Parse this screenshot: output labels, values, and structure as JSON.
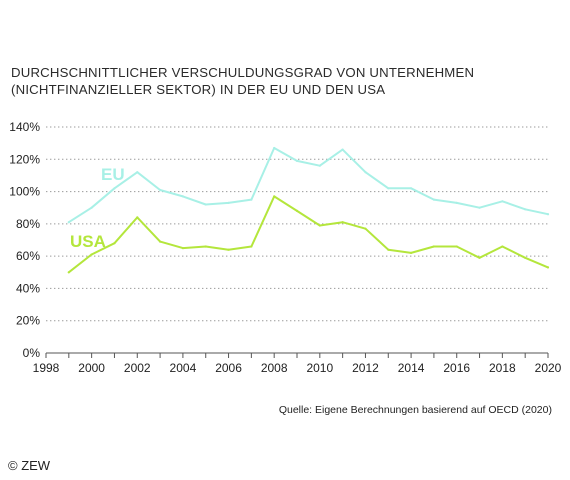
{
  "chart_data": {
    "type": "line",
    "title_lines": [
      "DURCHSCHNITTLICHER VERSCHULDUNGSGRAD VON UNTERNEHMEN",
      "(NICHTFINANZIELLER SEKTOR) IN DER EU UND DEN USA"
    ],
    "xlabel": "",
    "ylabel": "",
    "xlim": [
      1998,
      2020
    ],
    "ylim": [
      0,
      140
    ],
    "x_ticks": [
      "1998",
      "2000",
      "2002",
      "2004",
      "2006",
      "2008",
      "2010",
      "2012",
      "2014",
      "2016",
      "2018",
      "2020"
    ],
    "y_ticks": [
      "0%",
      "20%",
      "40%",
      "60%",
      "80%",
      "100%",
      "120%",
      "140%"
    ],
    "grid": "horizontal dotted",
    "x": [
      1999,
      2000,
      2001,
      2002,
      2003,
      2004,
      2005,
      2006,
      2007,
      2008,
      2009,
      2010,
      2011,
      2012,
      2013,
      2014,
      2015,
      2016,
      2017,
      2018,
      2019,
      2020
    ],
    "series": [
      {
        "name": "EU",
        "color": "#a8f0e6",
        "values": [
          81,
          90,
          102,
          112,
          101,
          97,
          92,
          93,
          95,
          127,
          119,
          116,
          126,
          112,
          102,
          102,
          95,
          93,
          90,
          94,
          89,
          86
        ]
      },
      {
        "name": "USA",
        "color": "#b4e63c",
        "values": [
          50,
          61,
          68,
          84,
          69,
          65,
          66,
          64,
          66,
          97,
          88,
          79,
          81,
          77,
          64,
          62,
          66,
          66,
          59,
          66,
          59,
          53
        ]
      }
    ]
  },
  "source": "Quelle: Eigene Berechnungen basierend auf OECD (2020)",
  "copyright": "© ZEW"
}
